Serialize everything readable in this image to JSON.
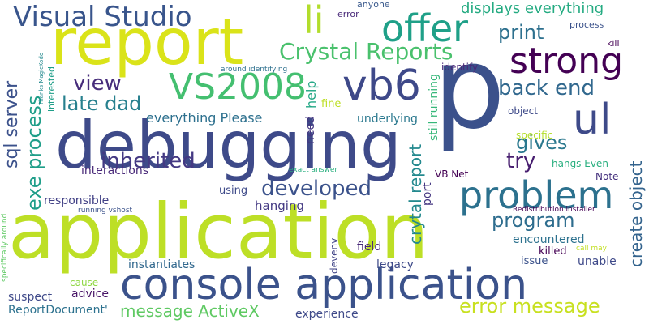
{
  "words": [
    {
      "text": "application",
      "color": "#bddf26"
    },
    {
      "text": "debugging",
      "color": "#3e4a89"
    },
    {
      "text": "report",
      "color": "#dae319"
    },
    {
      "text": "console application",
      "color": "#3b528b"
    },
    {
      "text": "p",
      "color": "#3b518b"
    },
    {
      "text": "problem",
      "color": "#2c718e"
    },
    {
      "text": "vb6",
      "color": "#3e4989"
    },
    {
      "text": "strong",
      "color": "#440154"
    },
    {
      "text": "offer",
      "color": "#1fa088"
    },
    {
      "text": "ul",
      "color": "#3e4a89"
    },
    {
      "text": "VS2008",
      "color": "#44bf70"
    },
    {
      "text": "Visual Studio",
      "color": "#39558c"
    },
    {
      "text": "li",
      "color": "#b2dd2c"
    },
    {
      "text": "Crystal Reports",
      "color": "#4ac16d"
    },
    {
      "text": "error message",
      "color": "#c8e020"
    },
    {
      "text": "print",
      "color": "#2d708e"
    },
    {
      "text": "back end",
      "color": "#31688e"
    },
    {
      "text": "inherited",
      "color": "#443983"
    },
    {
      "text": "developed",
      "color": "#3b528b"
    },
    {
      "text": "view",
      "color": "#472d7b"
    },
    {
      "text": "late dad",
      "color": "#27808e"
    },
    {
      "text": "gives",
      "color": "#2a788e"
    },
    {
      "text": "try",
      "color": "#481f70"
    },
    {
      "text": "program",
      "color": "#2e6d8e"
    },
    {
      "text": "message ActiveX",
      "color": "#5ec962"
    },
    {
      "text": "sql server",
      "color": "#3b518b"
    },
    {
      "text": "exe process",
      "color": "#1f9e89"
    },
    {
      "text": "crytal report",
      "color": "#23898e"
    },
    {
      "text": "create object",
      "color": "#33638d"
    },
    {
      "text": "displays everything",
      "color": "#25ab82"
    },
    {
      "text": "everything Please",
      "color": "#2d708e"
    },
    {
      "text": "instantiates",
      "color": "#31688e"
    },
    {
      "text": "hanging",
      "color": "#443a83"
    },
    {
      "text": "encountered",
      "color": "#2c718e"
    },
    {
      "text": "killed",
      "color": "#440154"
    },
    {
      "text": "legacy",
      "color": "#3e4a89"
    },
    {
      "text": "unable",
      "color": "#3e4989"
    },
    {
      "text": "issue",
      "color": "#3b528b"
    },
    {
      "text": "field",
      "color": "#482878"
    },
    {
      "text": "advice",
      "color": "#481567"
    },
    {
      "text": "suspect",
      "color": "#3e4989"
    },
    {
      "text": "cause",
      "color": "#8fd744"
    },
    {
      "text": "ReportDocument'",
      "color": "#2c718e"
    },
    {
      "text": "experience",
      "color": "#3e4989"
    },
    {
      "text": "responsible",
      "color": "#424186"
    },
    {
      "text": "interactions",
      "color": "#482878"
    },
    {
      "text": "using",
      "color": "#3e4a89"
    },
    {
      "text": "underlying",
      "color": "#2a788e"
    },
    {
      "text": "fine",
      "color": "#bddf26"
    },
    {
      "text": "help",
      "color": "#22a785"
    },
    {
      "text": "need",
      "color": "#453781"
    },
    {
      "text": "still running",
      "color": "#35b779"
    },
    {
      "text": "port",
      "color": "#453781"
    },
    {
      "text": "identify",
      "color": "#482878"
    },
    {
      "text": "object",
      "color": "#3e4a89"
    },
    {
      "text": "specific",
      "color": "#b5de2b"
    },
    {
      "text": "hangs Even",
      "color": "#29af7f"
    },
    {
      "text": "Note",
      "color": "#46327e"
    },
    {
      "text": "VB Net",
      "color": "#440154"
    },
    {
      "text": "devenv",
      "color": "#414487"
    },
    {
      "text": "kill",
      "color": "#440154"
    },
    {
      "text": "process",
      "color": "#3b528b"
    },
    {
      "text": "error",
      "color": "#482878"
    },
    {
      "text": "anyone",
      "color": "#38588c"
    },
    {
      "text": "around identifying",
      "color": "#2d708e"
    },
    {
      "text": "exact answer",
      "color": "#29af7f"
    },
    {
      "text": "Redistribution installer",
      "color": "#440154"
    },
    {
      "text": "call may",
      "color": "#c2df23"
    },
    {
      "text": "running vshost",
      "color": "#3b528b"
    },
    {
      "text": "specifically around",
      "color": "#5ec962"
    },
    {
      "text": "interested",
      "color": "#1f9e89"
    },
    {
      "text": "Thanks MagicKodo",
      "color": "#23898e"
    }
  ]
}
